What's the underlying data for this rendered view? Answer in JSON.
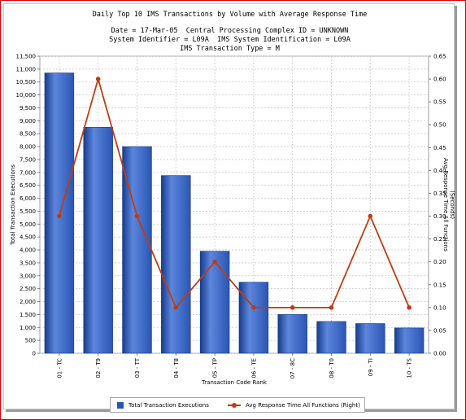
{
  "header": {
    "title": "Daily Top 10 IMS Transactions by Volume with Average Response Time",
    "line1": "Date = 17-Mar-05  Central Processing Complex ID = UNKNOWN",
    "line2": "System Identifier = L09A  IMS System Identification = L09A",
    "line3": "IMS Transaction Type = M"
  },
  "colors": {
    "bar": "#2a55b4",
    "bar_highlight": "#5c86dc",
    "bar_shadow": "#173c8c",
    "line": "#c03c14",
    "grid": "#c8c8c8",
    "frame": "#e00000"
  },
  "legend": {
    "bar_label": "Total Transaction Executions",
    "line_label": "Avg Response Time All Functions (Right)"
  },
  "chart_data": {
    "type": "bar",
    "title": "Daily Top 10 IMS Transactions by Volume with Average Response Time",
    "xlabel": "Transaction Code Rank",
    "ylabel": "Total Transaction Executions",
    "y2label_line1": "Avg Response Time All Functions",
    "y2label_line2": "(Seconds)",
    "categories": [
      "01 - TC",
      "02 - T9",
      "03 - TT",
      "04 - T8",
      "05 - TP",
      "06 - TE",
      "07 - 8C",
      "08 - T0",
      "09 - TI",
      "10 - TS"
    ],
    "series": [
      {
        "name": "Total Transaction Executions",
        "type": "bar",
        "axis": "left",
        "values": [
          10850,
          8750,
          8000,
          6880,
          3950,
          2750,
          1500,
          1230,
          1150,
          980
        ]
      },
      {
        "name": "Avg Response Time All Functions (Right)",
        "type": "line",
        "axis": "right",
        "values": [
          0.3,
          0.6,
          0.3,
          0.1,
          0.2,
          0.1,
          0.1,
          0.1,
          0.3,
          0.1
        ]
      }
    ],
    "ylim": [
      0,
      11500
    ],
    "y_ticks": [
      "0",
      "500",
      "1,000",
      "1,500",
      "2,000",
      "2,500",
      "3,000",
      "3,500",
      "4,000",
      "4,500",
      "5,000",
      "5,500",
      "6,000",
      "6,500",
      "7,000",
      "7,500",
      "8,000",
      "8,500",
      "9,000",
      "9,500",
      "10,000",
      "10,500",
      "11,000",
      "11,500"
    ],
    "y2lim": [
      0,
      0.65
    ],
    "y2_ticks": [
      "0.00",
      "0.05",
      "0.10",
      "0.15",
      "0.20",
      "0.25",
      "0.30",
      "0.35",
      "0.40",
      "0.45",
      "0.50",
      "0.55",
      "0.60",
      "0.65"
    ],
    "grid": true,
    "legend_position": "bottom"
  }
}
